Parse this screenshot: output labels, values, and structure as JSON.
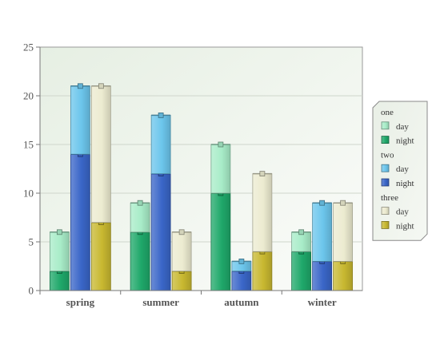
{
  "chart_data": {
    "type": "bar",
    "layout": "grouped-stacked",
    "categories": [
      "spring",
      "summer",
      "autumn",
      "winter"
    ],
    "ylim": [
      0,
      25
    ],
    "yticks": [
      "0",
      "5",
      "10",
      "15",
      "20",
      "25"
    ],
    "grid": true,
    "legend_position": "right",
    "groups": [
      {
        "name": "one",
        "series": [
          {
            "name": "night",
            "values": [
              2,
              6,
              10,
              4
            ],
            "color": "#1fa86a"
          },
          {
            "name": "day",
            "values": [
              4,
              3,
              5,
              2
            ],
            "color": "#a8ecc8"
          }
        ]
      },
      {
        "name": "two",
        "series": [
          {
            "name": "night",
            "values": [
              14,
              12,
              2,
              3
            ],
            "color": "#3a66c8"
          },
          {
            "name": "day",
            "values": [
              7,
              6,
              1,
              6
            ],
            "color": "#6cc6ec"
          }
        ]
      },
      {
        "name": "three",
        "series": [
          {
            "name": "night",
            "values": [
              7,
              2,
              4,
              3
            ],
            "color": "#c8b830"
          },
          {
            "name": "day",
            "values": [
              14,
              4,
              8,
              6
            ],
            "color": "#ecebd0"
          }
        ]
      }
    ]
  }
}
